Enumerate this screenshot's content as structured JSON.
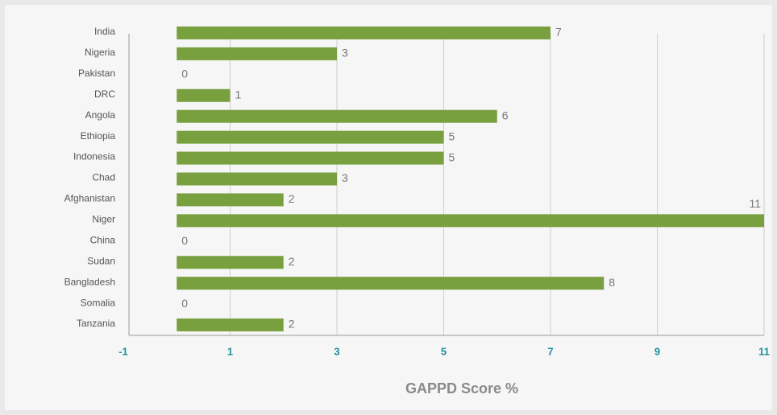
{
  "chart_data": {
    "type": "bar",
    "orientation": "horizontal",
    "x_label": "GAPPD Score %",
    "categories": [
      "India",
      "Nigeria",
      "Pakistan",
      "DRC",
      "Angola",
      "Ethiopia",
      "Indonesia",
      "Chad",
      "Afghanistan",
      "Niger",
      "China",
      "Sudan",
      "Bangladesh",
      "Somalia",
      "Tanzania"
    ],
    "values": [
      7,
      3,
      0,
      1,
      6,
      5,
      5,
      3,
      2,
      11,
      0,
      2,
      8,
      0,
      2
    ],
    "color": "#78a03f",
    "xlim": [
      -1,
      11
    ],
    "xticks": [
      -1,
      1,
      3,
      5,
      7,
      9,
      11
    ],
    "grid": true
  }
}
